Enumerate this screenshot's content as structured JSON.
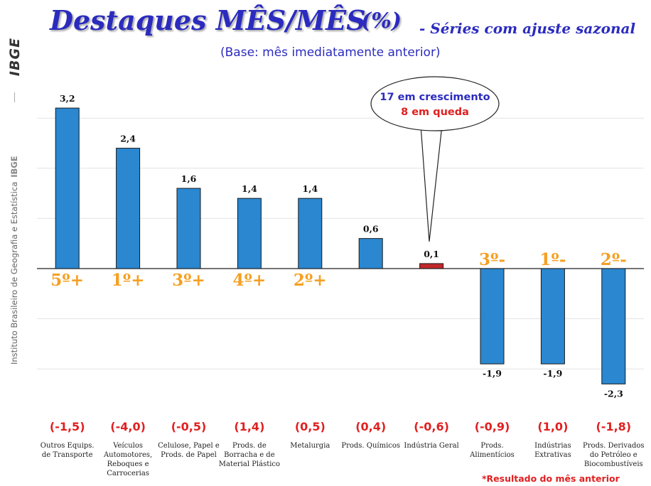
{
  "sidebar": {
    "logo_text": "IBGE",
    "institution": "Instituto Brasileiro de Geografia e Estatística",
    "short_name": "IBGE"
  },
  "header": {
    "title": "Destaques MÊS/MÊS",
    "unit": "(%)",
    "title_suffix": "- Séries com ajuste sazonal",
    "subtitle": "(Base: mês imediatamente anterior)"
  },
  "callout": {
    "growing": "17 em crescimento",
    "falling": "8 em queda"
  },
  "footnote": "*Resultado do mês anterior",
  "colors": {
    "bar": "#2a87d0",
    "highlight_bar": "#c0282a",
    "title": "#2b2bbf",
    "rank": "#f5a023",
    "previous": "#e02020"
  },
  "chart_data": {
    "type": "bar",
    "categories": [
      [
        "Outros Equips.",
        "de Transporte"
      ],
      [
        "Veículos",
        "Automotores,",
        "Reboques e",
        "Carrocerias"
      ],
      [
        "Celulose, Papel e",
        "Prods. de Papel"
      ],
      [
        "Prods. de",
        "Borracha e de",
        "Material Plástico"
      ],
      [
        "Metalurgia"
      ],
      [
        "Prods. Químicos"
      ],
      [
        "Indústria Geral"
      ],
      [
        "Prods.",
        "Alimentícios"
      ],
      [
        "Indústrias",
        "Extrativas"
      ],
      [
        "Prods. Derivados",
        "do Petróleo e",
        "Biocombustíveis"
      ]
    ],
    "values": [
      3.2,
      2.4,
      1.6,
      1.4,
      1.4,
      0.6,
      0.1,
      -1.9,
      -1.9,
      -2.3
    ],
    "value_labels": [
      "3,2",
      "2,4",
      "1,6",
      "1,4",
      "1,4",
      "0,6",
      "0,1",
      "-1,9",
      "-1,9",
      "-2,3"
    ],
    "highlight_index": 6,
    "ranks": [
      "5º+",
      "1º+",
      "3º+",
      "4º+",
      "2º+",
      "",
      "",
      "3º-",
      "1º-",
      "2º-"
    ],
    "previous_month": [
      "(-1,5)",
      "(-4,0)",
      "(-0,5)",
      "(1,4)",
      "(0,5)",
      "(0,4)",
      "(-0,6)",
      "(-0,9)",
      "(1,0)",
      "(-1,8)"
    ],
    "ylim": [
      -2.4,
      3.6
    ],
    "grid": true
  }
}
